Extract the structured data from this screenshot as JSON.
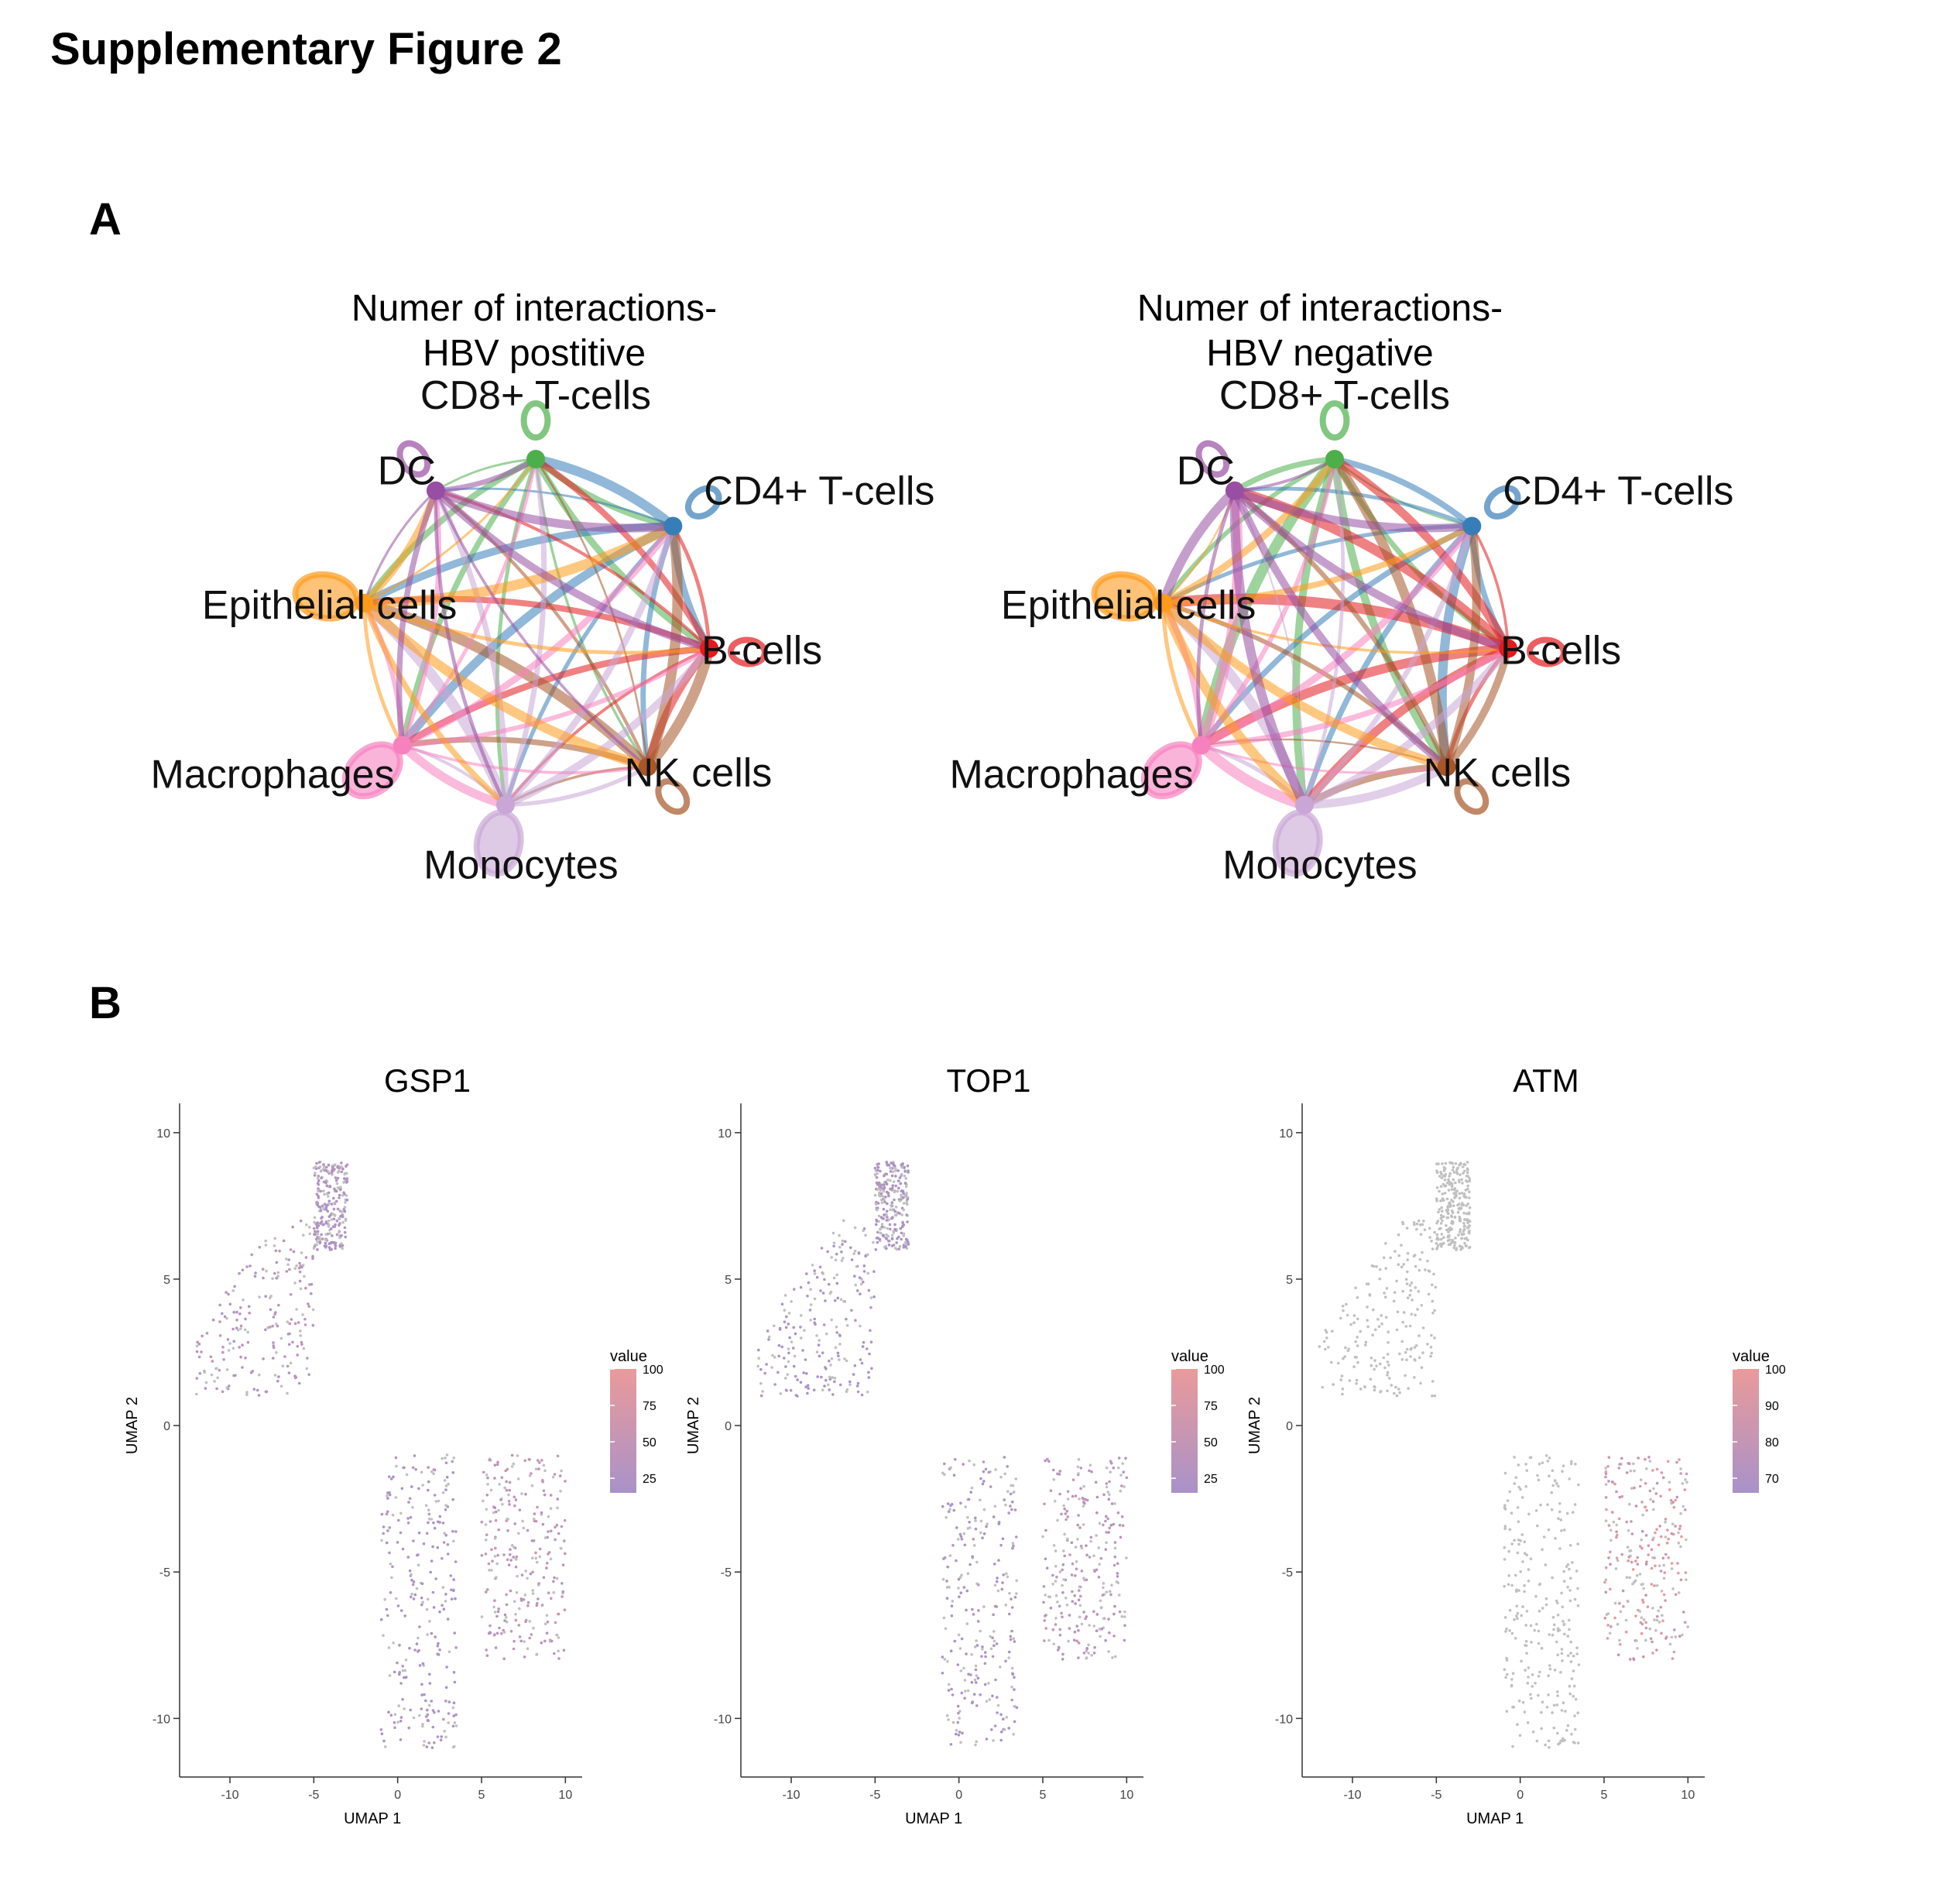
{
  "figure": {
    "title": "Supplementary Figure 2",
    "panel_a_label": "A",
    "panel_b_label": "B"
  },
  "networks": [
    {
      "title_line1": "Numer of interactions-",
      "title_line2": "HBV postitive",
      "nodes": [
        {
          "name": "CD8+ T-cells",
          "color": "#4daf4a"
        },
        {
          "name": "CD4+ T-cells",
          "color": "#377eb8"
        },
        {
          "name": "B-cells",
          "color": "#e41a1c"
        },
        {
          "name": "NK cells",
          "color": "#a65628"
        },
        {
          "name": "Monocytes",
          "color": "#c9a6d6"
        },
        {
          "name": "Macrophages",
          "color": "#f781bf"
        },
        {
          "name": "Epithelial cells",
          "color": "#ff9a1a"
        },
        {
          "name": "DC",
          "color": "#984ea3"
        }
      ]
    },
    {
      "title_line1": "Numer of interactions-",
      "title_line2": "HBV negative",
      "nodes": [
        {
          "name": "CD8+ T-cells",
          "color": "#4daf4a"
        },
        {
          "name": "CD4+ T-cells",
          "color": "#377eb8"
        },
        {
          "name": "B-cells",
          "color": "#e41a1c"
        },
        {
          "name": "NK cells",
          "color": "#a65628"
        },
        {
          "name": "Monocytes",
          "color": "#c9a6d6"
        },
        {
          "name": "Macrophages",
          "color": "#f781bf"
        },
        {
          "name": "Epithelial cells",
          "color": "#ff9a1a"
        },
        {
          "name": "DC",
          "color": "#984ea3"
        }
      ]
    }
  ],
  "chart_data": [
    {
      "type": "scatter",
      "title": "GSP1",
      "xlabel": "UMAP 1",
      "ylabel": "UMAP 2",
      "xlim": [
        -13,
        11
      ],
      "ylim": [
        -12,
        11
      ],
      "xticks": [
        -10,
        -5,
        0,
        5,
        10
      ],
      "yticks": [
        -10,
        -5,
        0,
        5,
        10
      ],
      "legend": {
        "title": "value",
        "ticks": [
          25,
          50,
          75,
          100
        ],
        "range": [
          15,
          100
        ],
        "placement": "right"
      },
      "color_low": "#a892c9",
      "color_high": "#ea9a9a",
      "point_color_na": "#c0c0c0",
      "regions": [
        {
          "name": "upper-left",
          "x": [
            -12,
            -5
          ],
          "y": [
            1,
            7
          ],
          "mean": 35
        },
        {
          "name": "upper-right",
          "x": [
            -5,
            -3
          ],
          "y": [
            6,
            9
          ],
          "mean": 25
        },
        {
          "name": "lower-center",
          "x": [
            -1,
            3.5
          ],
          "y": [
            -11,
            -1
          ],
          "mean": 22
        },
        {
          "name": "lower-right",
          "x": [
            5,
            10
          ],
          "y": [
            -8,
            -1
          ],
          "mean": 45
        }
      ]
    },
    {
      "type": "scatter",
      "title": "TOP1",
      "xlabel": "UMAP 1",
      "ylabel": "UMAP 2",
      "xlim": [
        -13,
        11
      ],
      "ylim": [
        -12,
        11
      ],
      "xticks": [
        -10,
        -5,
        0,
        5,
        10
      ],
      "yticks": [
        -10,
        -5,
        0,
        5,
        10
      ],
      "legend": {
        "title": "value",
        "ticks": [
          25,
          50,
          75,
          100
        ],
        "range": [
          15,
          100
        ],
        "placement": "right"
      },
      "color_low": "#a892c9",
      "color_high": "#ea9a9a",
      "point_color_na": "#c0c0c0",
      "regions": [
        {
          "name": "upper-left",
          "x": [
            -12,
            -5
          ],
          "y": [
            1,
            7
          ],
          "mean": 20
        },
        {
          "name": "upper-right",
          "x": [
            -5,
            -3
          ],
          "y": [
            6,
            9
          ],
          "mean": 22
        },
        {
          "name": "lower-center",
          "x": [
            -1,
            3.5
          ],
          "y": [
            -11,
            -1
          ],
          "mean": 20
        },
        {
          "name": "lower-right",
          "x": [
            5,
            10
          ],
          "y": [
            -8,
            -1
          ],
          "mean": 40
        }
      ]
    },
    {
      "type": "scatter",
      "title": "ATM",
      "xlabel": "UMAP 1",
      "ylabel": "UMAP 2",
      "xlim": [
        -13,
        11
      ],
      "ylim": [
        -12,
        11
      ],
      "xticks": [
        -10,
        -5,
        0,
        5,
        10
      ],
      "yticks": [
        -10,
        -5,
        0,
        5,
        10
      ],
      "legend": {
        "title": "value",
        "ticks": [
          70,
          80,
          90,
          100
        ],
        "range": [
          66,
          100
        ],
        "placement": "right"
      },
      "color_low": "#a892c9",
      "color_high": "#ea9a9a",
      "point_color_na": "#c0c0c0",
      "regions": [
        {
          "name": "upper-left",
          "x": [
            -12,
            -5
          ],
          "y": [
            1,
            7
          ],
          "mean": null
        },
        {
          "name": "upper-right",
          "x": [
            -5,
            -3
          ],
          "y": [
            6,
            9
          ],
          "mean": null
        },
        {
          "name": "lower-center",
          "x": [
            -1,
            3.5
          ],
          "y": [
            -11,
            -1
          ],
          "mean": null
        },
        {
          "name": "lower-right",
          "x": [
            5,
            10
          ],
          "y": [
            -8,
            -1
          ],
          "mean": 90
        }
      ]
    }
  ]
}
